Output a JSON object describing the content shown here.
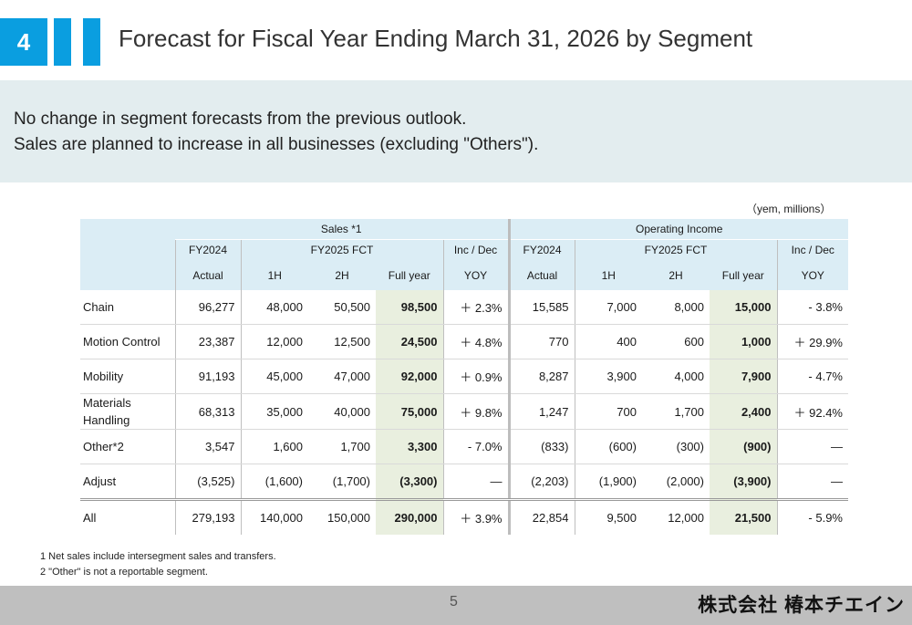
{
  "header": {
    "section_number": "4",
    "title": "Forecast for Fiscal Year Ending March 31, 2026 by Segment"
  },
  "summary": {
    "line1": "No change in segment forecasts from the previous outlook.",
    "line2": "Sales are planned to increase in all businesses (excluding \"Others\")."
  },
  "unit_note": "（yem, millions）",
  "table": {
    "group_sales": "Sales *1",
    "group_oi": "Operating Income",
    "fy2024": "FY2024",
    "fct": "FY2025 FCT",
    "incdec": "Inc / Dec",
    "actual": "Actual",
    "h1": "1H",
    "h2": "2H",
    "full_year": "Full year",
    "yoy": "YOY",
    "rows": [
      {
        "label": "Chain",
        "s_act": "96,277",
        "s_1h": "48,000",
        "s_2h": "50,500",
        "s_fy": "98,500",
        "s_yoy": "＋ 2.3%",
        "o_act": "15,585",
        "o_1h": "7,000",
        "o_2h": "8,000",
        "o_fy": "15,000",
        "o_yoy": "- 3.8%"
      },
      {
        "label": "Motion Control",
        "s_act": "23,387",
        "s_1h": "12,000",
        "s_2h": "12,500",
        "s_fy": "24,500",
        "s_yoy": "＋ 4.8%",
        "o_act": "770",
        "o_1h": "400",
        "o_2h": "600",
        "o_fy": "1,000",
        "o_yoy": "＋ 29.9%"
      },
      {
        "label": "Mobility",
        "s_act": "91,193",
        "s_1h": "45,000",
        "s_2h": "47,000",
        "s_fy": "92,000",
        "s_yoy": "＋ 0.9%",
        "o_act": "8,287",
        "o_1h": "3,900",
        "o_2h": "4,000",
        "o_fy": "7,900",
        "o_yoy": "- 4.7%"
      },
      {
        "label": "Materials Handling",
        "s_act": "68,313",
        "s_1h": "35,000",
        "s_2h": "40,000",
        "s_fy": "75,000",
        "s_yoy": "＋ 9.8%",
        "o_act": "1,247",
        "o_1h": "700",
        "o_2h": "1,700",
        "o_fy": "2,400",
        "o_yoy": "＋ 92.4%"
      },
      {
        "label": "Other*2",
        "s_act": "3,547",
        "s_1h": "1,600",
        "s_2h": "1,700",
        "s_fy": "3,300",
        "s_yoy": "- 7.0%",
        "o_act": "(833)",
        "o_1h": "(600)",
        "o_2h": "(300)",
        "o_fy": "(900)",
        "o_yoy": "—"
      },
      {
        "label": "Adjust",
        "s_act": "(3,525)",
        "s_1h": "(1,600)",
        "s_2h": "(1,700)",
        "s_fy": "(3,300)",
        "s_yoy": "—",
        "o_act": "(2,203)",
        "o_1h": "(1,900)",
        "o_2h": "(2,000)",
        "o_fy": "(3,900)",
        "o_yoy": "—"
      },
      {
        "label": "All",
        "s_act": "279,193",
        "s_1h": "140,000",
        "s_2h": "150,000",
        "s_fy": "290,000",
        "s_yoy": "＋ 3.9%",
        "o_act": "22,854",
        "o_1h": "9,500",
        "o_2h": "12,000",
        "o_fy": "21,500",
        "o_yoy": "- 5.9%"
      }
    ]
  },
  "notes": {
    "n1": "1 Net sales include intersegment sales and transfers.",
    "n2": "2 \"Other\" is not a reportable segment."
  },
  "footer": {
    "page_number": "5",
    "company": "株式会社 椿本チエイン"
  },
  "colors": {
    "accent": "#0a9ee0",
    "summary_bg": "#e3edef",
    "header_bg": "#dbedf5",
    "fullyear_bg": "#e9efdf",
    "footer_bg": "#bfbfbf"
  }
}
